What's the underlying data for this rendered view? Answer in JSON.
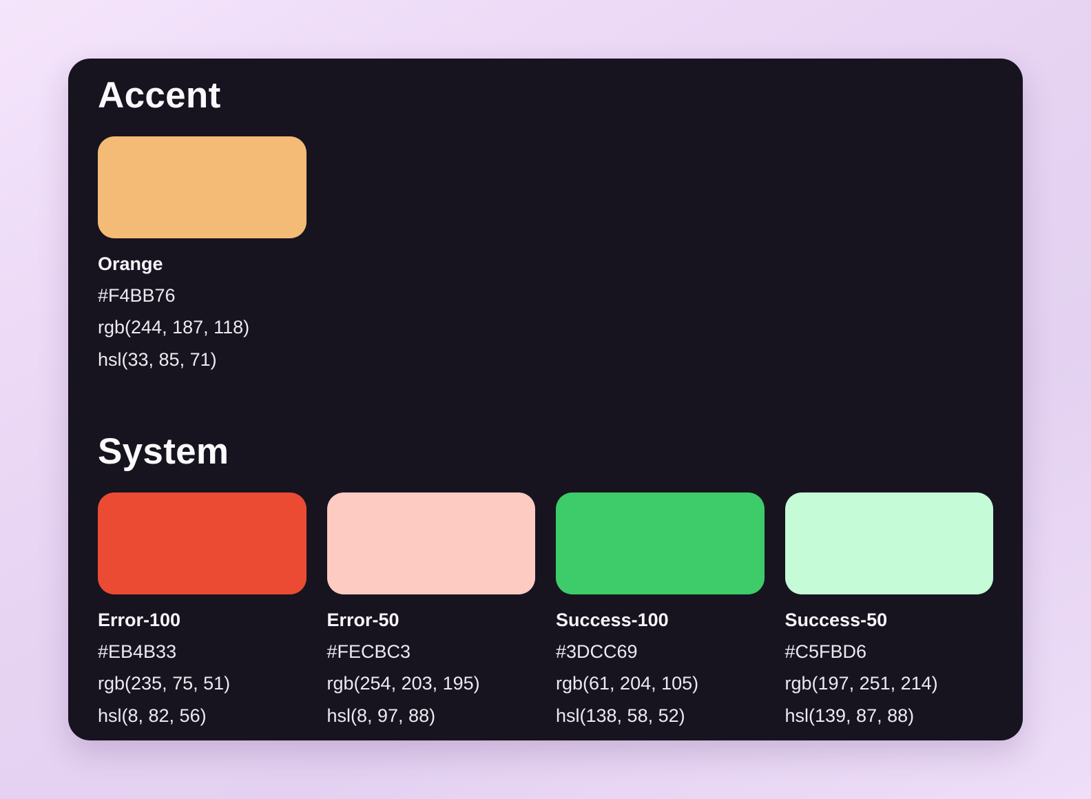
{
  "theme": {
    "page_background_top": "#F5E5FB",
    "page_background_bottom": "#E4D1F1",
    "card_background": "#171420",
    "heading_text_color": "#FAFAFC",
    "value_text_color": "#ECEAF0"
  },
  "sections": [
    {
      "title": "Accent",
      "swatches": [
        {
          "name": "Orange",
          "hex": "#F4BB76",
          "rgb": "rgb(244, 187, 118)",
          "hsl": "hsl(33, 85, 71)"
        }
      ]
    },
    {
      "title": "System",
      "swatches": [
        {
          "name": "Error-100",
          "hex": "#EB4B33",
          "rgb": "rgb(235, 75, 51)",
          "hsl": "hsl(8, 82, 56)"
        },
        {
          "name": "Error-50",
          "hex": "#FECBC3",
          "rgb": "rgb(254, 203, 195)",
          "hsl": "hsl(8, 97, 88)"
        },
        {
          "name": "Success-100",
          "hex": "#3DCC69",
          "rgb": "rgb(61, 204, 105)",
          "hsl": "hsl(138, 58, 52)"
        },
        {
          "name": "Success-50",
          "hex": "#C5FBD6",
          "rgb": "rgb(197, 251, 214)",
          "hsl": "hsl(139, 87, 88)"
        }
      ]
    }
  ]
}
